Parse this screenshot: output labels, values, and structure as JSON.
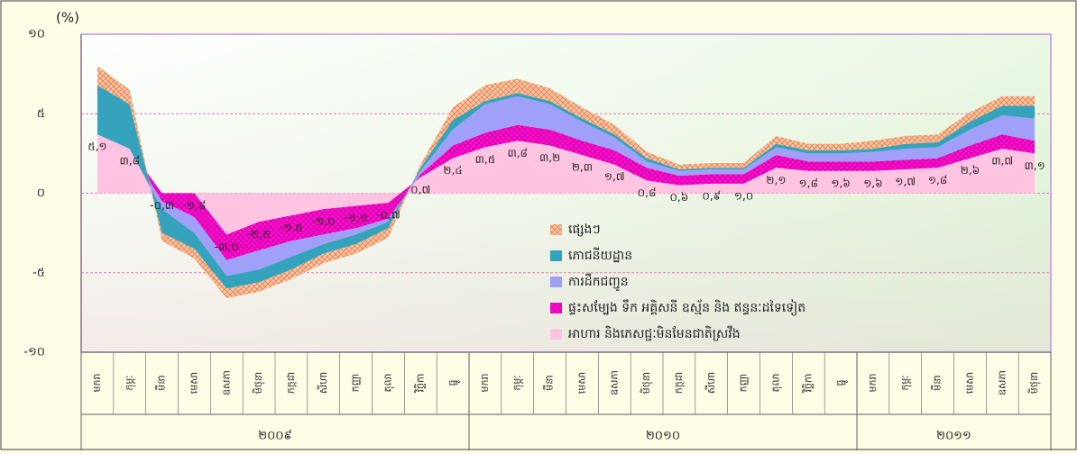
{
  "chart_data": {
    "type": "stacked_area",
    "y_unit": "(%)",
    "categories": [
      "មករា",
      "កុម្ភៈ",
      "មីនា",
      "មេសា",
      "ឧសភា",
      "មិថុនា",
      "កក្កដា",
      "សីហា",
      "កញ្ញា",
      "តុលា",
      "វិច្ឆិកា",
      "ធ្នូ",
      "មករា",
      "កុម្ភៈ",
      "មីនា",
      "មេសា",
      "ឧសភា",
      "មិថុនា",
      "កក្កដា",
      "សីហា",
      "កញ្ញា",
      "តុលា",
      "វិច្ឆិកា",
      "ធ្នូ",
      "មករា",
      "កុម្ភៈ",
      "មីនា",
      "មេសា",
      "ឧសភា",
      "មិថុនា"
    ],
    "years": [
      {
        "label": "២០០៩",
        "months": 12
      },
      {
        "label": "២០១០",
        "months": 12
      },
      {
        "label": "២០១១",
        "months": 6
      }
    ],
    "series": [
      {
        "name": "អាហារ និងភេសជ្ជៈមិនមែនជាតិស្រវឹង",
        "color": "#ffc4e2",
        "pattern": "solid",
        "values": [
          3.7,
          2.8,
          0,
          0,
          -2.6,
          -1.8,
          -1.4,
          -1.0,
          -0.8,
          -0.6,
          1.0,
          2.2,
          2.9,
          3.3,
          3.0,
          2.4,
          1.8,
          0.8,
          0.5,
          0.6,
          0.6,
          1.6,
          1.4,
          1.4,
          1.4,
          1.5,
          1.6,
          2.2,
          2.8,
          2.5
        ]
      },
      {
        "name": "ផ្ទះសម្បែង ទឹក អគ្គិសនី ឧស្ម័ន និង ឥន្ធនៈដទៃទៀត",
        "color": "#ff10d0",
        "pattern": "cross",
        "values": [
          0,
          0,
          -0.5,
          -1.5,
          -1.6,
          -1.8,
          -1.6,
          -1.6,
          -1.4,
          -1.0,
          0.2,
          0.8,
          0.9,
          1.0,
          1.0,
          0.9,
          0.9,
          0.8,
          0.6,
          0.6,
          0.6,
          0.8,
          0.6,
          0.6,
          0.6,
          0.6,
          0.6,
          0.8,
          0.9,
          0.8
        ]
      },
      {
        "name": "ការដឹកជញ្ជូន",
        "color": "#a0a0f8",
        "pattern": "solid",
        "values": [
          0,
          0,
          -0.5,
          -1.0,
          -1.0,
          -1.2,
          -1.0,
          -0.6,
          -0.4,
          -0.2,
          0.2,
          1.0,
          1.8,
          1.8,
          1.6,
          1.2,
          0.8,
          0.4,
          0.3,
          0.3,
          0.3,
          0.5,
          0.5,
          0.5,
          0.6,
          0.7,
          0.7,
          1.0,
          1.2,
          1.4
        ]
      },
      {
        "name": "ភោជនីយដ្ឋាន",
        "color": "#35a3bb",
        "pattern": "solid",
        "values": [
          3.1,
          2.8,
          -1.5,
          -1.0,
          -0.8,
          -0.8,
          -0.8,
          -0.6,
          -0.6,
          -0.4,
          0.2,
          0.6,
          0.2,
          0.2,
          0.2,
          0.2,
          0.2,
          0.2,
          0.1,
          0.1,
          0.1,
          0.2,
          0.2,
          0.2,
          0.2,
          0.3,
          0.3,
          0.5,
          0.6,
          0.8
        ]
      },
      {
        "name": "ផ្សេងៗ",
        "color": "#f4b088",
        "pattern": "hatch",
        "values": [
          1.2,
          0.9,
          -0.5,
          -0.6,
          -0.6,
          -0.6,
          -0.6,
          -0.6,
          -0.6,
          -0.6,
          0.2,
          0.8,
          1.0,
          0.9,
          0.8,
          0.7,
          0.6,
          0.4,
          0.3,
          0.3,
          0.3,
          0.5,
          0.4,
          0.4,
          0.5,
          0.5,
          0.5,
          0.6,
          0.6,
          0.6
        ]
      }
    ],
    "point_labels": [
      "៥,១",
      "៣,៨",
      "-០,៣",
      "-១,៨",
      "-៣,០",
      "-២,២",
      "-១,៥",
      "-១,០",
      "-១,១",
      "-០,៧",
      "០,៧",
      "២,៤",
      "៣,៥",
      "៣,៨",
      "៣,២",
      "២,៣",
      "១,៧",
      "០,៨",
      "០,៦",
      "០,៩",
      "១,០",
      "២,១",
      "១,៨",
      "១,៦",
      "១,៦",
      "១,៧",
      "១,៨",
      "២,៦",
      "៣,៧",
      "៣,១"
    ],
    "ylim": [
      -10,
      10
    ],
    "yticks": [
      {
        "value": -10,
        "label": "-១០"
      },
      {
        "value": -5,
        "label": "-៥"
      },
      {
        "value": 0,
        "label": "០"
      },
      {
        "value": 5,
        "label": "៥"
      },
      {
        "value": 10,
        "label": "១០"
      }
    ],
    "grid": true
  }
}
